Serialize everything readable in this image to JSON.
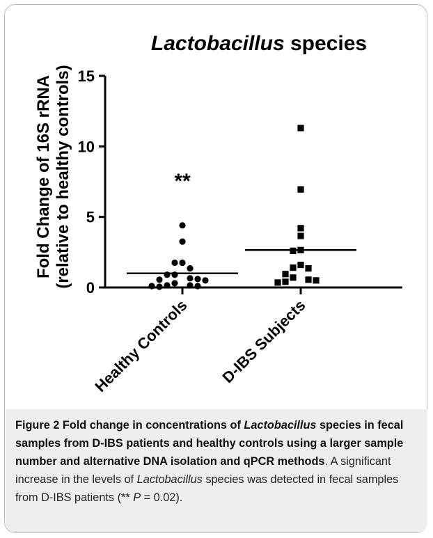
{
  "chart_data": {
    "type": "scatter",
    "title_italic": "Lactobacillus",
    "title_rest": " species",
    "ylabel_line1": "Fold Change of 16S rRNA",
    "ylabel_line2": "(relative to healthy controls)",
    "ylim": [
      0,
      15
    ],
    "yticks": [
      0,
      5,
      10,
      15
    ],
    "ytick_labels": [
      "0",
      "5",
      "10",
      "15"
    ],
    "categories": [
      "Healthy Controls",
      "D-IBS Subjects"
    ],
    "series": [
      {
        "category": "Healthy Controls",
        "marker": "circle",
        "values": [
          4.4,
          3.25,
          1.75,
          1.75,
          1.35,
          0.9,
          0.9,
          0.65,
          0.6,
          0.55,
          0.5,
          0.3,
          0.15,
          0.15,
          0.1,
          0.1,
          0.05
        ],
        "mean": 1.0,
        "annotation": "**"
      },
      {
        "category": "D-IBS Subjects",
        "marker": "square",
        "values": [
          11.3,
          6.95,
          4.2,
          3.65,
          2.65,
          2.6,
          1.6,
          1.4,
          1.35,
          0.95,
          0.7,
          0.55,
          0.5,
          0.4,
          0.35
        ],
        "mean": 2.65
      }
    ]
  },
  "caption": {
    "fig_label": "Figure 2",
    "bold_1": " Fold change in concentrations of ",
    "bold_italic": "Lactobacillus",
    "bold_2": " species in fecal samples from D-IBS patients and healthy controls using a larger sample number and alternative DNA isolation and qPCR methods",
    "normal_1": ". A significant increase in the levels of ",
    "normal_italic": "Lactobacillus",
    "normal_2": " species was detected in fecal samples from D-IBS patients (** ",
    "p_symbol": "P",
    "normal_3": " = 0.02)."
  }
}
